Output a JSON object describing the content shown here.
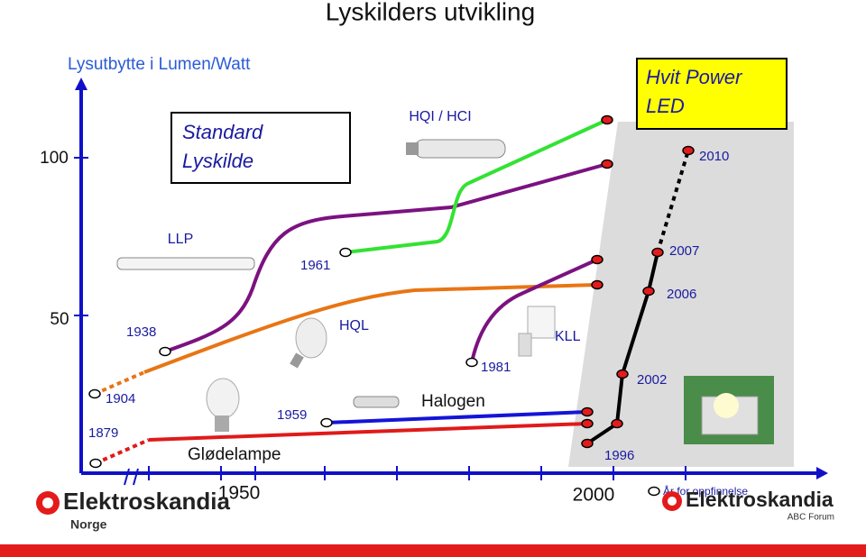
{
  "header": {
    "title": "Lyskilders utvikling",
    "axis_label": "Lysutbytte i Lumen/Watt"
  },
  "y_ticks": [
    "100",
    "50"
  ],
  "boxes": {
    "standard": [
      "Standard",
      "Lyskilde"
    ],
    "led": [
      "Hvit Power",
      "LED"
    ]
  },
  "labels": {
    "hqi": "HQI / HCI",
    "y2010": "2010",
    "llp": "LLP",
    "y1961": "1961",
    "y2007": "2007",
    "y2006": "2006",
    "y1938": "1938",
    "hql": "HQL",
    "kll": "KLL",
    "y1981": "1981",
    "y1904": "1904",
    "y2002": "2002",
    "y1959": "1959",
    "halogen": "Halogen",
    "y1879": "1879",
    "glodelampe": "Glødelampe",
    "y1996": "1996"
  },
  "x_ticks": [
    "1950",
    "2000"
  ],
  "x_axis_label": "År for oppfinnelse",
  "logos": {
    "left": {
      "name": "Elektroskandia",
      "sub": "Norge"
    },
    "right": {
      "name": "Elektroskandia",
      "sub": "ABC Forum"
    }
  }
}
